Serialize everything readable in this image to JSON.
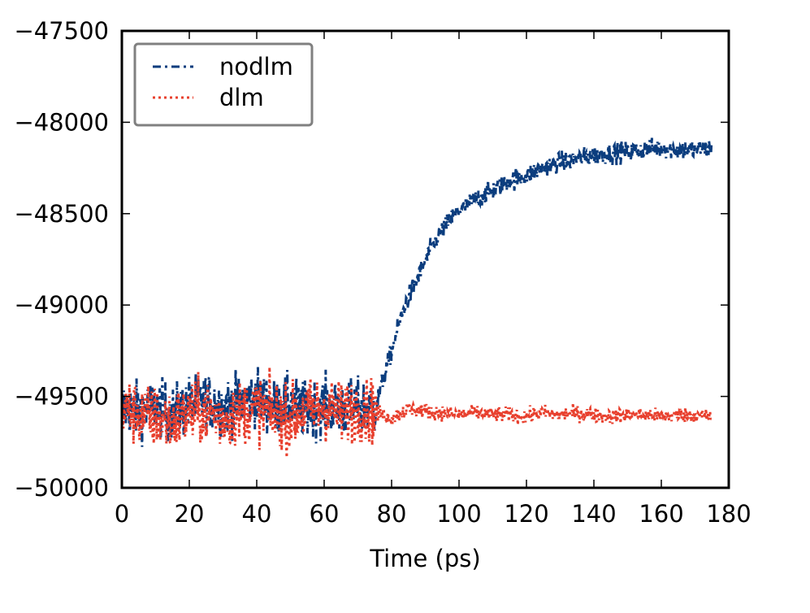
{
  "chart_data": {
    "type": "line",
    "title": "",
    "xlabel": "Time (ps)",
    "ylabel": "",
    "xlim": [
      0,
      180
    ],
    "ylim": [
      -50000,
      -47500
    ],
    "xticks": [
      0,
      20,
      40,
      60,
      80,
      100,
      120,
      140,
      160,
      180
    ],
    "xtick_labels": [
      "0",
      "20",
      "40",
      "60",
      "80",
      "100",
      "120",
      "140",
      "160",
      "180"
    ],
    "yticks": [
      -50000,
      -49500,
      -49000,
      -48500,
      -48000,
      -47500
    ],
    "ytick_labels": [
      "−50000",
      "−49500",
      "−49000",
      "−48500",
      "−48000",
      "−47500"
    ],
    "grid": false,
    "legend": {
      "placement": "top-left"
    },
    "series": [
      {
        "name": "nodlm",
        "color": "#0b3d7e",
        "linestyle": "dash-dot",
        "x": [
          0,
          5,
          10,
          15,
          20,
          25,
          30,
          35,
          40,
          45,
          50,
          55,
          60,
          65,
          70,
          75,
          78,
          80,
          82,
          84,
          86,
          88,
          90,
          92,
          94,
          96,
          98,
          100,
          105,
          110,
          115,
          120,
          125,
          130,
          135,
          140,
          145,
          150,
          155,
          160,
          165,
          170,
          175
        ],
        "y": [
          -49560,
          -49580,
          -49550,
          -49600,
          -49540,
          -49520,
          -49560,
          -49530,
          -49500,
          -49560,
          -49540,
          -49580,
          -49550,
          -49570,
          -49560,
          -49560,
          -49380,
          -49250,
          -49120,
          -49000,
          -48920,
          -48840,
          -48760,
          -48680,
          -48620,
          -48570,
          -48520,
          -48480,
          -48420,
          -48370,
          -48320,
          -48290,
          -48250,
          -48220,
          -48200,
          -48180,
          -48170,
          -48160,
          -48150,
          -48140,
          -48150,
          -48150,
          -48140
        ]
      },
      {
        "name": "dlm",
        "color": "#e8402e",
        "linestyle": "dotted",
        "x": [
          0,
          5,
          10,
          15,
          20,
          25,
          30,
          35,
          40,
          45,
          50,
          55,
          60,
          65,
          70,
          75,
          80,
          85,
          90,
          95,
          100,
          105,
          110,
          115,
          120,
          125,
          130,
          135,
          140,
          145,
          150,
          155,
          160,
          165,
          170,
          175
        ],
        "y": [
          -49560,
          -49600,
          -49620,
          -49640,
          -49600,
          -49580,
          -49620,
          -49590,
          -49560,
          -49600,
          -49620,
          -49580,
          -49560,
          -49590,
          -49570,
          -49580,
          -49620,
          -49570,
          -49580,
          -49590,
          -49600,
          -49590,
          -49600,
          -49600,
          -49610,
          -49590,
          -49600,
          -49590,
          -49600,
          -49610,
          -49600,
          -49600,
          -49610,
          -49600,
          -49600,
          -49610
        ]
      }
    ],
    "noise": {
      "nodlm": {
        "early_amplitude": 170,
        "late_amplitude": 60
      },
      "dlm": {
        "early_amplitude": 190,
        "late_amplitude": 45
      }
    }
  }
}
